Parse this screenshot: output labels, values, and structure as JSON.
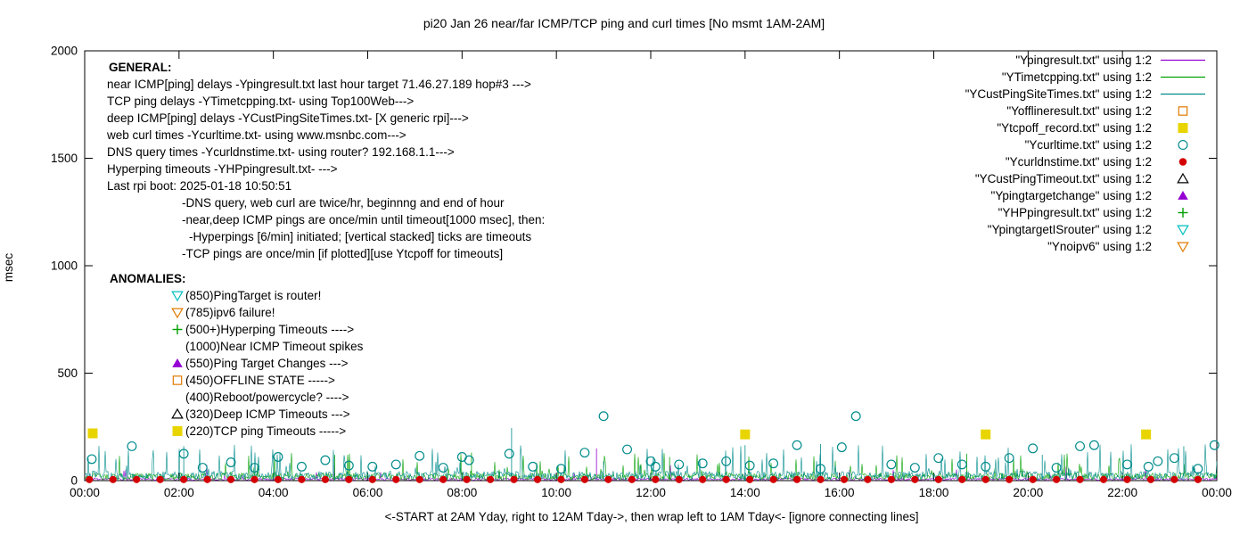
{
  "title": "pi20 Jan 26  near/far ICMP/TCP ping and curl times [No msmt 1AM-2AM]",
  "ylabel": "msec",
  "xlabel": "<-START at 2AM Yday, right to 12AM Tday->, then wrap left to 1AM Tday<- [ignore connecting lines]",
  "legend": [
    {
      "label": "\"Ypingresult.txt\" using 1:2",
      "style": "line",
      "color": "#9400d3"
    },
    {
      "label": "\"YTimetcpping.txt\" using 1:2",
      "style": "line",
      "color": "#00a000"
    },
    {
      "label": "\"YCustPingSiteTimes.txt\" using 1:2",
      "style": "line",
      "color": "#008b8b"
    },
    {
      "label": "\"Yofflineresult.txt\" using 1:2",
      "style": "open-square",
      "color": "#e07b00"
    },
    {
      "label": "\"Ytcpoff_record.txt\" using 1:2",
      "style": "filled-square",
      "color": "#e8d500"
    },
    {
      "label": "\"Ycurltime.txt\" using 1:2",
      "style": "open-circle",
      "color": "#008b8b"
    },
    {
      "label": "\"Ycurldnstime.txt\" using 1:2",
      "style": "filled-circle",
      "color": "#d40000"
    },
    {
      "label": "\"YCustPingTimeout.txt\" using 1:2",
      "style": "open-triangle-up",
      "color": "#000000"
    },
    {
      "label": "\"Ypingtargetchange\" using 1:2",
      "style": "filled-triangle-up",
      "color": "#9400d3"
    },
    {
      "label": "\"YHPpingresult.txt\" using 1:2",
      "style": "plus",
      "color": "#00a000"
    },
    {
      "label": "\"YpingtargetISrouter\" using 1:2",
      "style": "open-triangle-down",
      "color": "#00bfbf"
    },
    {
      "label": "\"Ynoipv6\" using 1:2",
      "style": "open-triangle-down",
      "color": "#e07b00"
    }
  ],
  "general": {
    "heading": "GENERAL:",
    "lines": [
      {
        "indent": 0,
        "text": "near ICMP[ping] delays -Ypingresult.txt last hour target 71.46.27.189 hop#3 --->"
      },
      {
        "indent": 0,
        "text": "TCP ping delays -YTimetcpping.txt- using Top100Web--->"
      },
      {
        "indent": 0,
        "text": "deep ICMP[ping] delays -YCustPingSiteTimes.txt- [X generic rpi]--->"
      },
      {
        "indent": 0,
        "text": "web curl times -Ycurltime.txt- using www.msnbc.com--->"
      },
      {
        "indent": 0,
        "text": "DNS query times -Ycurldnstime.txt- using router? 192.168.1.1--->"
      },
      {
        "indent": 0,
        "text": "Hyperping timeouts -YHPpingresult.txt- --->"
      },
      {
        "indent": 0,
        "text": "Last rpi boot: 2025-01-18 10:50:51"
      },
      {
        "indent": 1,
        "text": "-DNS query, web curl are twice/hr, beginnng and end of hour"
      },
      {
        "indent": 1,
        "text": "-near,deep ICMP pings are once/min until timeout[1000 msec], then:"
      },
      {
        "indent": 2,
        "text": "-Hyperpings [6/min] initiated; [vertical stacked] ticks are timeouts"
      },
      {
        "indent": 1,
        "text": "-TCP pings are once/min [if plotted][use Ytcpoff for timeouts]"
      }
    ]
  },
  "anomalies": {
    "heading": "ANOMALIES:",
    "items": [
      {
        "marker": "open-triangle-down",
        "color": "#00bfbf",
        "text": "(850)PingTarget is router!"
      },
      {
        "marker": "open-triangle-down",
        "color": "#e07b00",
        "text": "(785)ipv6 failure!"
      },
      {
        "marker": "plus",
        "color": "#00a000",
        "text": "(500+)Hyperping Timeouts ---->"
      },
      {
        "marker": null,
        "color": null,
        "text": "(1000)Near ICMP Timeout spikes"
      },
      {
        "marker": "filled-triangle-up",
        "color": "#9400d3",
        "text": "(550)Ping Target Changes --->"
      },
      {
        "marker": "open-square",
        "color": "#e07b00",
        "text": "(450)OFFLINE STATE ----->"
      },
      {
        "marker": null,
        "color": null,
        "text": "(400)Reboot/powercycle? ---->"
      },
      {
        "marker": "open-triangle-up",
        "color": "#000000",
        "text": "(320)Deep ICMP Timeouts --->"
      },
      {
        "marker": "filled-square",
        "color": "#e8d500",
        "text": "(220)TCP ping Timeouts ----->"
      }
    ]
  },
  "chart_data": {
    "type": "scatter",
    "title": "pi20 Jan 26  near/far ICMP/TCP ping and curl times [No msmt 1AM-2AM]",
    "xlabel": "<-START at 2AM Yday, right to 12AM Tday->, then wrap left to 1AM Tday<- [ignore connecting lines]",
    "ylabel": "msec",
    "ylim": [
      0,
      2000
    ],
    "y_ticks": [
      0,
      500,
      1000,
      1500,
      2000
    ],
    "x_hours_range": [
      0,
      24
    ],
    "x_tick_labels": [
      "00:00",
      "02:00",
      "04:00",
      "06:00",
      "08:00",
      "10:00",
      "12:00",
      "14:00",
      "16:00",
      "18:00",
      "20:00",
      "22:00",
      "00:00"
    ],
    "grid": false,
    "legend_position": "top-right",
    "series": [
      {
        "name": "\"Ypingresult.txt\" using 1:2",
        "style": "noise-line",
        "color": "#9400d3",
        "baseline_range_msec": [
          1,
          12
        ],
        "spike_chance": 0.015,
        "spike_range_msec": [
          20,
          80
        ],
        "seed": 11,
        "tall_spikes_hour_msec": [
          [
            10.85,
            150
          ]
        ]
      },
      {
        "name": "\"YTimetcpping.txt\" using 1:2",
        "style": "noise-line",
        "color": "#00a000",
        "baseline_range_msec": [
          3,
          35
        ],
        "spike_chance": 0.05,
        "spike_range_msec": [
          40,
          130
        ],
        "seed": 23,
        "tall_spikes_hour_msec": [
          [
            5.3,
            120
          ],
          [
            8.2,
            130
          ],
          [
            12.4,
            110
          ],
          [
            18.7,
            125
          ]
        ]
      },
      {
        "name": "\"YCustPingSiteTimes.txt\" using 1:2",
        "style": "noise-line",
        "color": "#008b8b",
        "baseline_range_msec": [
          5,
          45
        ],
        "spike_chance": 0.07,
        "spike_range_msec": [
          50,
          170
        ],
        "seed": 5,
        "tall_spikes_hour_msec": [
          [
            2.1,
            160
          ],
          [
            9.05,
            245
          ],
          [
            11.0,
            90
          ],
          [
            14.0,
            165
          ],
          [
            15.6,
            170
          ],
          [
            20.3,
            120
          ],
          [
            23.3,
            160
          ]
        ]
      },
      {
        "name": "\"Ycurltime.txt\" using 1:2",
        "style": "marker",
        "marker": "open-circle",
        "color": "#008b8b",
        "points_hour_msec": [
          [
            0.15,
            100
          ],
          [
            1.0,
            160
          ],
          [
            2.1,
            125
          ],
          [
            2.5,
            60
          ],
          [
            3.1,
            85
          ],
          [
            3.6,
            60
          ],
          [
            4.1,
            110
          ],
          [
            4.6,
            65
          ],
          [
            5.1,
            95
          ],
          [
            5.6,
            70
          ],
          [
            6.1,
            65
          ],
          [
            6.6,
            75
          ],
          [
            7.1,
            115
          ],
          [
            7.6,
            60
          ],
          [
            8.0,
            110
          ],
          [
            8.15,
            95
          ],
          [
            9.0,
            125
          ],
          [
            9.5,
            65
          ],
          [
            10.1,
            55
          ],
          [
            10.6,
            130
          ],
          [
            11.0,
            300
          ],
          [
            11.5,
            145
          ],
          [
            12.0,
            90
          ],
          [
            12.1,
            65
          ],
          [
            12.6,
            75
          ],
          [
            13.1,
            80
          ],
          [
            13.6,
            90
          ],
          [
            14.1,
            70
          ],
          [
            14.6,
            80
          ],
          [
            15.1,
            165
          ],
          [
            15.6,
            55
          ],
          [
            16.05,
            155
          ],
          [
            16.35,
            300
          ],
          [
            17.1,
            75
          ],
          [
            17.6,
            60
          ],
          [
            18.1,
            105
          ],
          [
            18.6,
            75
          ],
          [
            19.1,
            65
          ],
          [
            19.6,
            105
          ],
          [
            20.1,
            150
          ],
          [
            20.6,
            60
          ],
          [
            21.1,
            160
          ],
          [
            21.4,
            165
          ],
          [
            22.1,
            75
          ],
          [
            22.55,
            65
          ],
          [
            22.75,
            90
          ],
          [
            23.1,
            105
          ],
          [
            23.6,
            55
          ],
          [
            23.95,
            165
          ]
        ]
      },
      {
        "name": "\"Ycurldnstime.txt\" using 1:2",
        "style": "marker",
        "marker": "filled-circle",
        "color": "#d40000",
        "points_spec": {
          "from_hour": 0.1,
          "to_hour": 24,
          "step_hour": 0.5,
          "msec": 5
        }
      },
      {
        "name": "\"Ytcpoff_record.txt\" using 1:2",
        "style": "marker",
        "marker": "filled-square",
        "color": "#e8d500",
        "points_hour_msec": [
          [
            0.17,
            220
          ],
          [
            14.0,
            215
          ],
          [
            19.1,
            215
          ],
          [
            22.5,
            215
          ]
        ]
      }
    ]
  }
}
